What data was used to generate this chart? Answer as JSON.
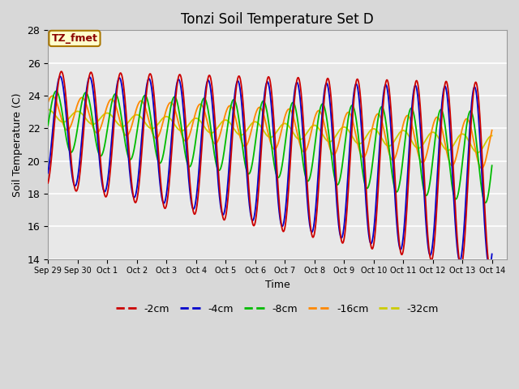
{
  "title": "Tonzi Soil Temperature Set D",
  "xlabel": "Time",
  "ylabel": "Soil Temperature (C)",
  "ylim": [
    14,
    28
  ],
  "xlim_start": 0,
  "xlim_end": 15.5,
  "annotation_text": "TZ_fmet",
  "bg_color": "#d8d8d8",
  "plot_bg_color": "#e8e8e8",
  "legend_entries": [
    "-2cm",
    "-4cm",
    "-8cm",
    "-16cm",
    "-32cm"
  ],
  "legend_colors": [
    "#cc0000",
    "#0000cc",
    "#00bb00",
    "#ff8800",
    "#cccc00"
  ],
  "line_width": 1.3,
  "x_tick_labels": [
    "Sep 29",
    "Sep 30",
    "Oct 1",
    "Oct 2",
    "Oct 3",
    "Oct 4",
    "Oct 5",
    "Oct 6",
    "Oct 7",
    "Oct 8",
    "Oct 9",
    "Oct 10",
    "Oct 11",
    "Oct 12",
    "Oct 13",
    "Oct 14"
  ],
  "x_tick_positions": [
    0,
    1,
    2,
    3,
    4,
    5,
    6,
    7,
    8,
    9,
    10,
    11,
    12,
    13,
    14,
    15
  ],
  "y_tick_positions": [
    14,
    16,
    18,
    20,
    22,
    24,
    26,
    28
  ],
  "figsize": [
    6.4,
    4.8
  ],
  "dpi": 100
}
